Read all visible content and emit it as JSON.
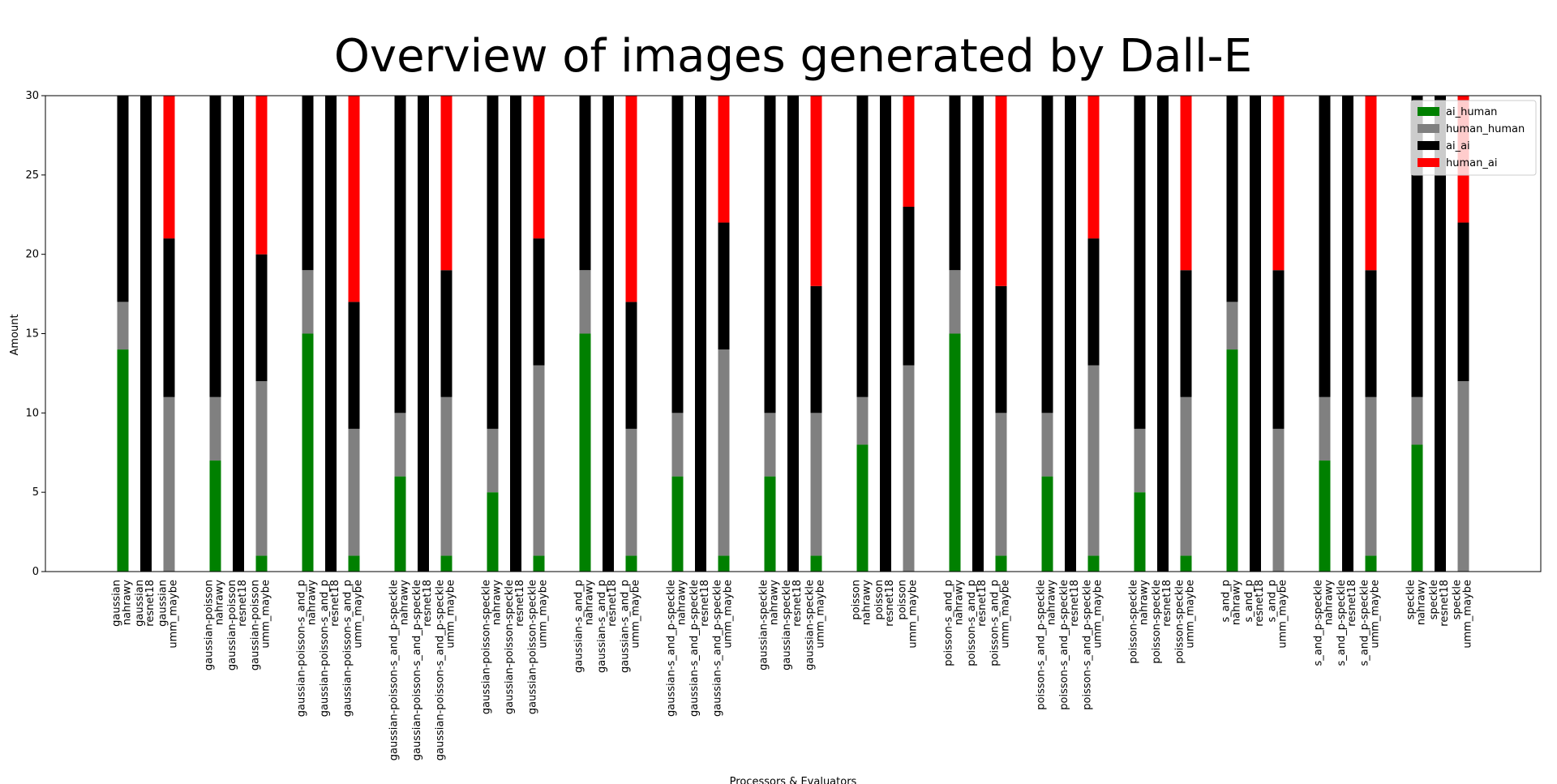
{
  "chart_data": {
    "type": "bar",
    "stacked": true,
    "title": "Overview of images generated by Dall-E",
    "xlabel": "Processors & Evaluators",
    "ylabel": "Amount",
    "ylim": [
      0,
      30
    ],
    "yticks": [
      0,
      5,
      10,
      15,
      20,
      25,
      30
    ],
    "legend_position": "top-right",
    "series": [
      {
        "name": "ai_human",
        "color": "#008000"
      },
      {
        "name": "human_human",
        "color": "#808080"
      },
      {
        "name": "ai_ai",
        "color": "#000000"
      },
      {
        "name": "human_ai",
        "color": "#ff0000"
      }
    ],
    "groups": [
      {
        "bars": [
          {
            "label": "gaussian\nnahrawy",
            "values": [
              14,
              3,
              13,
              0
            ]
          },
          {
            "label": "gaussian\nresnet18",
            "values": [
              0,
              0,
              30,
              0
            ]
          },
          {
            "label": "gaussian\numm_maybe",
            "values": [
              0,
              11,
              10,
              9
            ]
          }
        ]
      },
      {
        "bars": [
          {
            "label": "gaussian-poisson\nnahrawy",
            "values": [
              7,
              4,
              19,
              0
            ]
          },
          {
            "label": "gaussian-poisson\nresnet18",
            "values": [
              0,
              0,
              30,
              0
            ]
          },
          {
            "label": "gaussian-poisson\numm_maybe",
            "values": [
              1,
              11,
              8,
              10
            ]
          }
        ]
      },
      {
        "bars": [
          {
            "label": "gaussian-poisson-s_and_p\nnahrawy",
            "values": [
              15,
              4,
              11,
              0
            ]
          },
          {
            "label": "gaussian-poisson-s_and_p\nresnet18",
            "values": [
              0,
              0,
              30,
              0
            ]
          },
          {
            "label": "gaussian-poisson-s_and_p\numm_maybe",
            "values": [
              1,
              8,
              8,
              13
            ]
          }
        ]
      },
      {
        "bars": [
          {
            "label": "gaussian-poisson-s_and_p-speckle\nnahrawy",
            "values": [
              6,
              4,
              20,
              0
            ]
          },
          {
            "label": "gaussian-poisson-s_and_p-speckle\nresnet18",
            "values": [
              0,
              0,
              30,
              0
            ]
          },
          {
            "label": "gaussian-poisson-s_and_p-speckle\numm_maybe",
            "values": [
              1,
              10,
              8,
              11
            ]
          }
        ]
      },
      {
        "bars": [
          {
            "label": "gaussian-poisson-speckle\nnahrawy",
            "values": [
              5,
              4,
              21,
              0
            ]
          },
          {
            "label": "gaussian-poisson-speckle\nresnet18",
            "values": [
              0,
              0,
              30,
              0
            ]
          },
          {
            "label": "gaussian-poisson-speckle\numm_maybe",
            "values": [
              1,
              12,
              8,
              9
            ]
          }
        ]
      },
      {
        "bars": [
          {
            "label": "gaussian-s_and_p\nnahrawy",
            "values": [
              15,
              4,
              11,
              0
            ]
          },
          {
            "label": "gaussian-s_and_p\nresnet18",
            "values": [
              0,
              0,
              30,
              0
            ]
          },
          {
            "label": "gaussian-s_and_p\numm_maybe",
            "values": [
              1,
              8,
              8,
              13
            ]
          }
        ]
      },
      {
        "bars": [
          {
            "label": "gaussian-s_and_p-speckle\nnahrawy",
            "values": [
              6,
              4,
              20,
              0
            ]
          },
          {
            "label": "gaussian-s_and_p-speckle\nresnet18",
            "values": [
              0,
              0,
              30,
              0
            ]
          },
          {
            "label": "gaussian-s_and_p-speckle\numm_maybe",
            "values": [
              1,
              13,
              8,
              8
            ]
          }
        ]
      },
      {
        "bars": [
          {
            "label": "gaussian-speckle\nnahrawy",
            "values": [
              6,
              4,
              20,
              0
            ]
          },
          {
            "label": "gaussian-speckle\nresnet18",
            "values": [
              0,
              0,
              30,
              0
            ]
          },
          {
            "label": "gaussian-speckle\numm_maybe",
            "values": [
              1,
              9,
              8,
              12
            ]
          }
        ]
      },
      {
        "bars": [
          {
            "label": "poisson\nnahrawy",
            "values": [
              8,
              3,
              19,
              0
            ]
          },
          {
            "label": "poisson\nresnet18",
            "values": [
              0,
              0,
              30,
              0
            ]
          },
          {
            "label": "poisson\numm_maybe",
            "values": [
              0,
              13,
              10,
              7
            ]
          }
        ]
      },
      {
        "bars": [
          {
            "label": "poisson-s_and_p\nnahrawy",
            "values": [
              15,
              4,
              11,
              0
            ]
          },
          {
            "label": "poisson-s_and_p\nresnet18",
            "values": [
              0,
              0,
              30,
              0
            ]
          },
          {
            "label": "poisson-s_and_p\numm_maybe",
            "values": [
              1,
              9,
              8,
              12
            ]
          }
        ]
      },
      {
        "bars": [
          {
            "label": "poisson-s_and_p-speckle\nnahrawy",
            "values": [
              6,
              4,
              20,
              0
            ]
          },
          {
            "label": "poisson-s_and_p-speckle\nresnet18",
            "values": [
              0,
              0,
              30,
              0
            ]
          },
          {
            "label": "poisson-s_and_p-speckle\numm_maybe",
            "values": [
              1,
              12,
              8,
              9
            ]
          }
        ]
      },
      {
        "bars": [
          {
            "label": "poisson-speckle\nnahrawy",
            "values": [
              5,
              4,
              21,
              0
            ]
          },
          {
            "label": "poisson-speckle\nresnet18",
            "values": [
              0,
              0,
              30,
              0
            ]
          },
          {
            "label": "poisson-speckle\numm_maybe",
            "values": [
              1,
              10,
              8,
              11
            ]
          }
        ]
      },
      {
        "bars": [
          {
            "label": "s_and_p\nnahrawy",
            "values": [
              14,
              3,
              13,
              0
            ]
          },
          {
            "label": "s_and_p\nresnet18",
            "values": [
              0,
              0,
              30,
              0
            ]
          },
          {
            "label": "s_and_p\numm_maybe",
            "values": [
              0,
              9,
              10,
              11
            ]
          }
        ]
      },
      {
        "bars": [
          {
            "label": "s_and_p-speckle\nnahrawy",
            "values": [
              7,
              4,
              19,
              0
            ]
          },
          {
            "label": "s_and_p-speckle\nresnet18",
            "values": [
              0,
              0,
              30,
              0
            ]
          },
          {
            "label": "s_and_p-speckle\numm_maybe",
            "values": [
              1,
              10,
              8,
              11
            ]
          }
        ]
      },
      {
        "bars": [
          {
            "label": "speckle\nnahrawy",
            "values": [
              8,
              3,
              19,
              0
            ]
          },
          {
            "label": "speckle\nresnet18",
            "values": [
              0,
              0,
              30,
              0
            ]
          },
          {
            "label": "speckle\numm_maybe",
            "values": [
              0,
              12,
              10,
              8
            ]
          }
        ]
      }
    ]
  }
}
